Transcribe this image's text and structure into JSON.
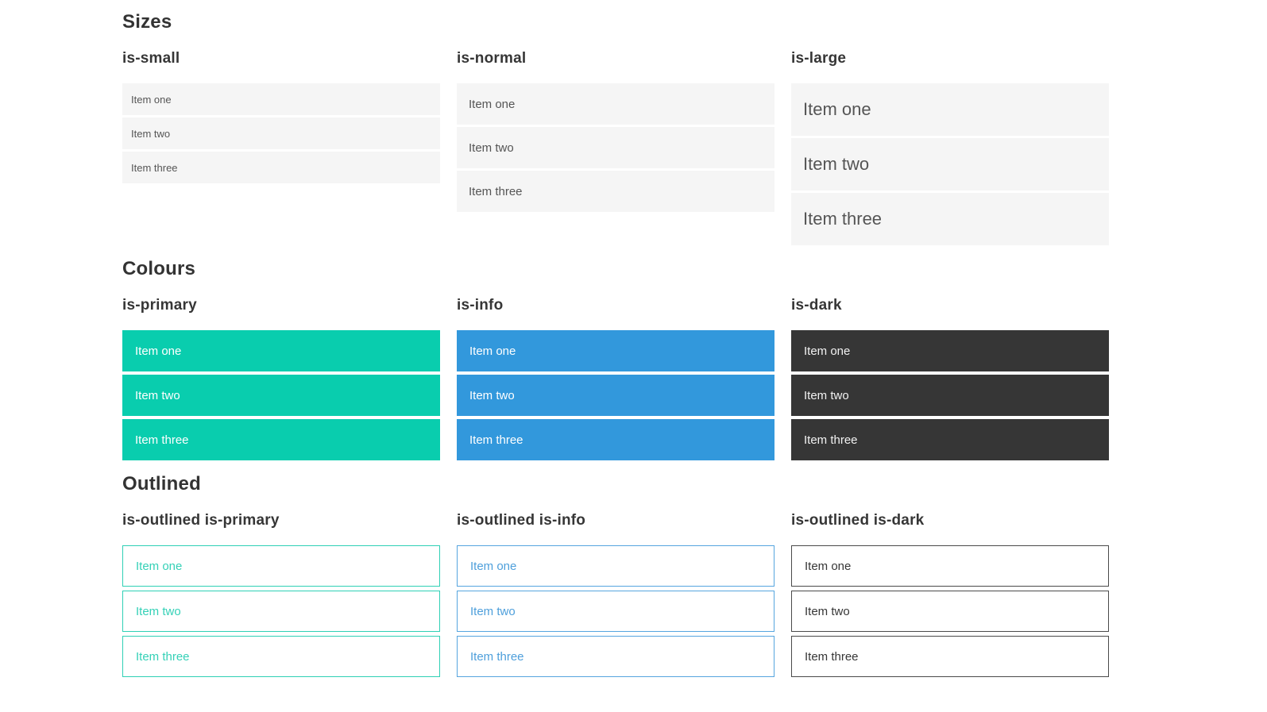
{
  "colors": {
    "primary": "#09cdae",
    "info": "#3298dc",
    "dark": "#363636",
    "item_background": "#f5f5f5",
    "item_text": "#555555",
    "heading_text": "#333333",
    "white": "#ffffff"
  },
  "sections": [
    {
      "title": "Sizes",
      "groups": [
        {
          "label": "is-small",
          "items": [
            "Item one",
            "Item two",
            "Item three"
          ]
        },
        {
          "label": "is-normal",
          "items": [
            "Item one",
            "Item two",
            "Item three"
          ]
        },
        {
          "label": "is-large",
          "items": [
            "Item one",
            "Item two",
            "Item three"
          ]
        }
      ]
    },
    {
      "title": "Colours",
      "groups": [
        {
          "label": "is-primary",
          "items": [
            "Item one",
            "Item two",
            "Item three"
          ]
        },
        {
          "label": "is-info",
          "items": [
            "Item one",
            "Item two",
            "Item three"
          ]
        },
        {
          "label": "is-dark",
          "items": [
            "Item one",
            "Item two",
            "Item three"
          ]
        }
      ]
    },
    {
      "title": "Outlined",
      "groups": [
        {
          "label": "is-outlined is-primary",
          "items": [
            "Item one",
            "Item two",
            "Item three"
          ]
        },
        {
          "label": "is-outlined is-info",
          "items": [
            "Item one",
            "Item two",
            "Item three"
          ]
        },
        {
          "label": "is-outlined is-dark",
          "items": [
            "Item one",
            "Item two",
            "Item three"
          ]
        }
      ]
    }
  ]
}
